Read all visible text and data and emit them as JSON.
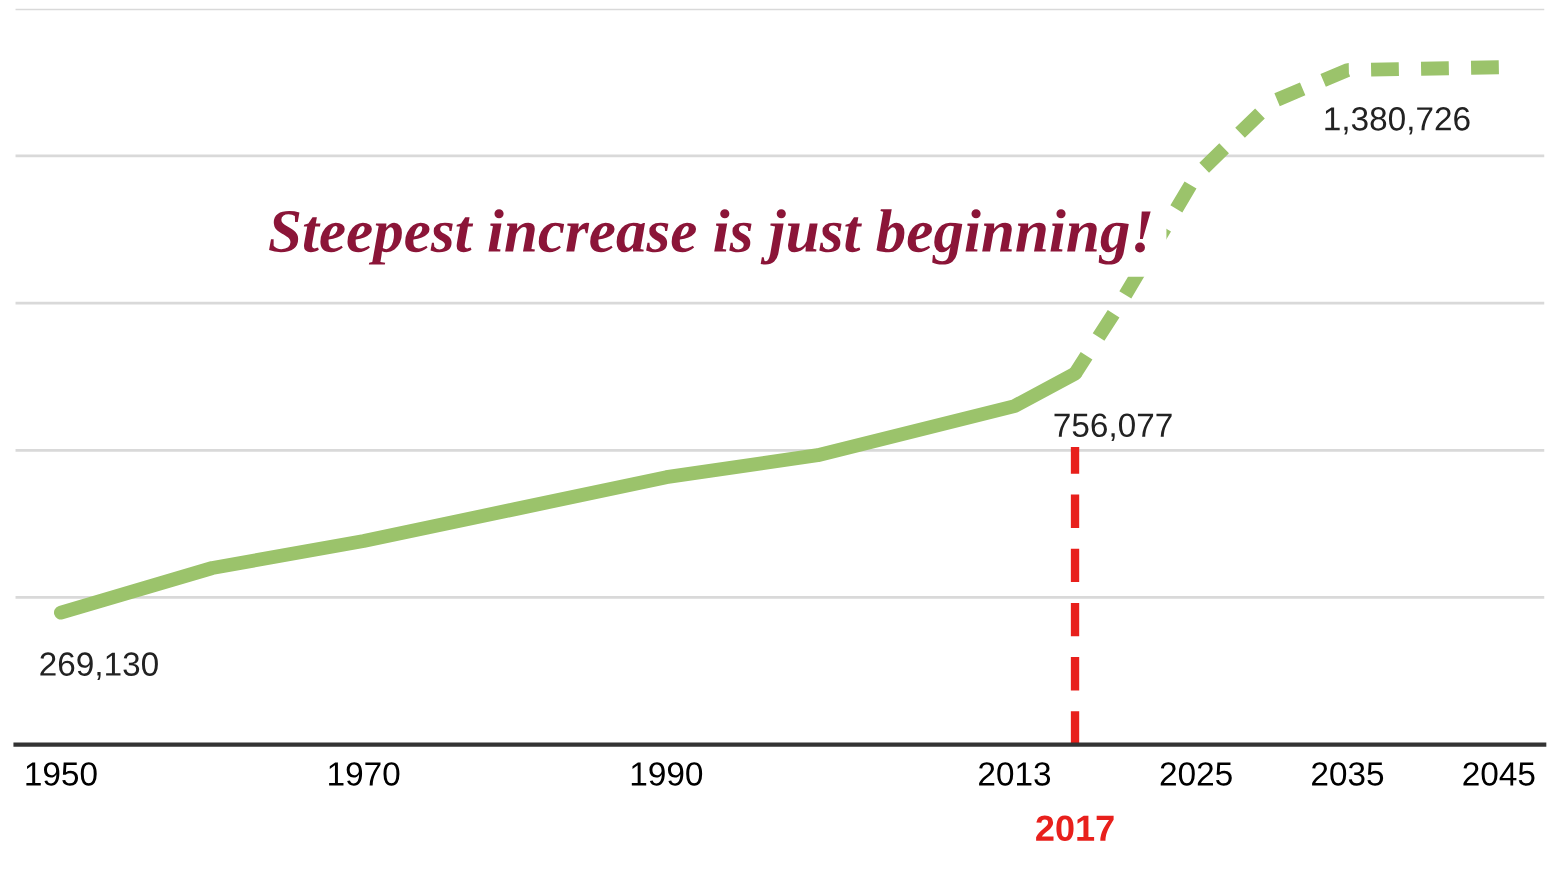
{
  "chart_data": {
    "type": "line",
    "series": [
      {
        "color": "#9bc36b",
        "line_style": "solid",
        "x": [
          1950,
          1960,
          1970,
          1980,
          1990,
          2000,
          2013,
          2017
        ],
        "values": [
          269130,
          360000,
          415000,
          480000,
          545000,
          590000,
          690000,
          756077
        ],
        "value_labels": [
          "269,130",
          null,
          null,
          null,
          null,
          null,
          null,
          null
        ]
      },
      {
        "color": "#9bc36b",
        "line_style": "dashed",
        "x": [
          2017,
          2020,
          2025,
          2030,
          2035,
          2045
        ],
        "values": [
          756077,
          900000,
          1160000,
          1310000,
          1375000,
          1380726
        ],
        "value_labels": [
          "756,077",
          null,
          null,
          null,
          null,
          "1,380,726"
        ]
      }
    ],
    "xlim": [
      1947,
      2048
    ],
    "xticks": [
      1950,
      1970,
      1990,
      2013,
      2025,
      2035,
      2045
    ],
    "ylim": [
      0,
      1500000
    ],
    "yticks": [
      {
        "value": 300000,
        "label": null
      },
      {
        "value": 600000,
        "label": null
      },
      {
        "value": 900000,
        "label": null
      },
      {
        "value": 1200000,
        "label": null
      },
      {
        "value": 1500000,
        "label": null
      }
    ],
    "tick_labels": "x",
    "grid": "y",
    "legend": false,
    "ref_lines": [
      {
        "axis": "x",
        "value": 2017,
        "label": "2017",
        "color": "#e8201c",
        "line_style": "dashed"
      }
    ],
    "annotations": [
      "Steepest increase is just beginning!"
    ]
  }
}
